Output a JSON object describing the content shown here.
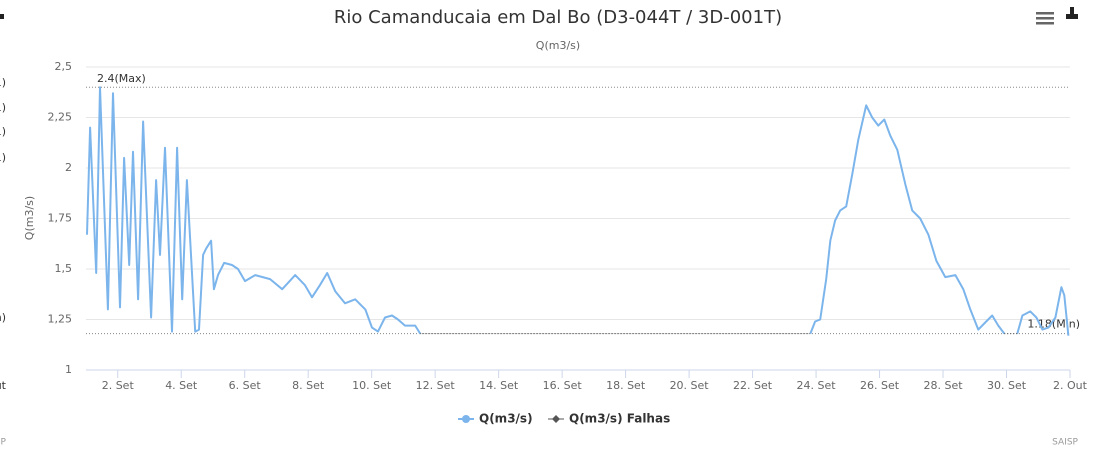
{
  "chart_data": {
    "type": "line",
    "title": "Rio Camanducaia em Dal Bo (D3-044T / 3D-001T)",
    "subtitle": "Q(m3/s)",
    "y_label": "Q(m3/s)",
    "credits": "SAISP",
    "left_fragments": [
      "1)",
      "1)",
      "1)",
      "1)",
      "n)",
      "Out",
      "SAISP"
    ],
    "xlim": [
      1,
      32
    ],
    "xticks": [
      {
        "value": 2,
        "label": "2. Set"
      },
      {
        "value": 4,
        "label": "4. Set"
      },
      {
        "value": 6,
        "label": "6. Set"
      },
      {
        "value": 8,
        "label": "8. Set"
      },
      {
        "value": 10,
        "label": "10. Set"
      },
      {
        "value": 12,
        "label": "12. Set"
      },
      {
        "value": 14,
        "label": "14. Set"
      },
      {
        "value": 16,
        "label": "16. Set"
      },
      {
        "value": 18,
        "label": "18. Set"
      },
      {
        "value": 20,
        "label": "20. Set"
      },
      {
        "value": 22,
        "label": "22. Set"
      },
      {
        "value": 24,
        "label": "24. Set"
      },
      {
        "value": 26,
        "label": "26. Set"
      },
      {
        "value": 28,
        "label": "28. Set"
      },
      {
        "value": 30,
        "label": "30. Set"
      },
      {
        "value": 32,
        "label": "2. Out"
      }
    ],
    "ylim": [
      1,
      2.5
    ],
    "yticks": [
      1,
      {
        "value": 1.25,
        "label": "1,25"
      },
      {
        "value": 1.5,
        "label": "1,5"
      },
      {
        "value": 1.75,
        "label": "1,75"
      },
      2,
      {
        "value": 2.25,
        "label": "2,25"
      },
      {
        "value": 2.5,
        "label": "2,5"
      }
    ],
    "grid": true,
    "plot_lines": [
      {
        "value": 2.4,
        "label": "2.4(Max)"
      },
      {
        "value": 1.18,
        "label": "1.18(Min)"
      }
    ],
    "series": [
      {
        "name": "Q(m3/s)",
        "color": "#7cb5ec",
        "x": [
          1.03,
          1.13,
          1.32,
          1.44,
          1.69,
          1.85,
          2.07,
          2.2,
          2.36,
          2.48,
          2.64,
          2.8,
          3.05,
          3.21,
          3.33,
          3.49,
          3.71,
          3.87,
          4.03,
          4.18,
          4.44,
          4.56,
          4.69,
          4.78,
          4.94,
          5.03,
          5.16,
          5.35,
          5.6,
          5.79,
          6.01,
          6.33,
          6.8,
          7.18,
          7.59,
          7.9,
          8.12,
          8.37,
          8.6,
          8.85,
          9.16,
          9.48,
          9.8,
          10.01,
          10.2,
          10.42,
          10.64,
          10.83,
          11.05,
          11.37,
          11.53,
          11.6,
          23.82,
          23.97,
          24.13,
          24.32,
          24.45,
          24.6,
          24.76,
          24.95,
          25.14,
          25.33,
          25.58,
          25.77,
          25.96,
          26.15,
          26.34,
          26.56,
          26.81,
          27.03,
          27.28,
          27.54,
          27.79,
          28.07,
          28.39,
          28.64,
          28.86,
          29.11,
          29.36,
          29.55,
          29.74,
          29.93,
          30.2,
          30.34,
          30.5,
          30.75,
          30.94,
          31.13,
          31.32,
          31.54,
          31.73,
          31.82,
          31.95
        ],
        "values": [
          1.67,
          2.2,
          1.48,
          2.4,
          1.3,
          2.37,
          1.31,
          2.05,
          1.52,
          2.08,
          1.35,
          2.23,
          1.26,
          1.94,
          1.57,
          2.1,
          1.19,
          2.1,
          1.35,
          1.94,
          1.19,
          1.2,
          1.57,
          1.6,
          1.64,
          1.4,
          1.47,
          1.53,
          1.52,
          1.5,
          1.44,
          1.47,
          1.45,
          1.4,
          1.47,
          1.42,
          1.36,
          1.42,
          1.48,
          1.39,
          1.33,
          1.35,
          1.3,
          1.21,
          1.19,
          1.26,
          1.27,
          1.25,
          1.22,
          1.22,
          1.18,
          null,
          1.18,
          1.24,
          1.25,
          1.45,
          1.64,
          1.74,
          1.79,
          1.81,
          1.97,
          2.14,
          2.31,
          2.25,
          2.21,
          2.24,
          2.16,
          2.09,
          1.92,
          1.79,
          1.75,
          1.67,
          1.54,
          1.46,
          1.47,
          1.4,
          1.3,
          1.2,
          1.24,
          1.27,
          1.22,
          1.18,
          null,
          1.18,
          1.27,
          1.29,
          1.26,
          1.2,
          1.21,
          1.26,
          1.41,
          1.37,
          1.17
        ]
      },
      {
        "name": "Q(m3/s) Falhas",
        "color": "#555555",
        "x": [
          11.53,
          23.82,
          26,
          29.93,
          30.34
        ],
        "values": [
          1.18,
          1.18,
          null,
          1.18,
          1.18
        ]
      }
    ]
  }
}
